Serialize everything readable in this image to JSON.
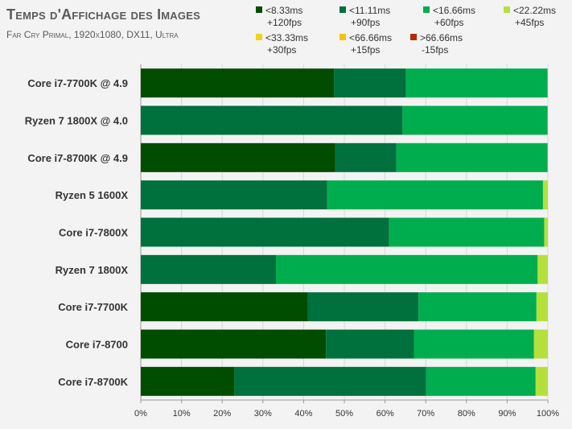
{
  "title": "Temps d'Affichage des Images",
  "subtitle": "Far Cry Primal, 1920x1080, DX11, Ultra",
  "chart_data": {
    "type": "bar",
    "orientation": "horizontal",
    "stacked": true,
    "normalized": true,
    "categories": [
      "Core i7-7700K @ 4.9",
      "Ryzen 7 1800X @ 4.0",
      "Core i7-8700K @ 4.9",
      "Ryzen 5 1600X",
      "Core i7-7800X",
      "Ryzen 7 1800X",
      "Core i7-7700K",
      "Core i7-8700",
      "Core i7-8700K"
    ],
    "series": [
      {
        "name": "<8.33ms",
        "name2": "+120fps",
        "color": "#004d00",
        "values": [
          47.5,
          0,
          47.8,
          0,
          0,
          0,
          41,
          45.5,
          23
        ]
      },
      {
        "name": "<11.11ms",
        "name2": "+90fps",
        "color": "#00703c",
        "values": [
          17.6,
          64.3,
          15,
          45.8,
          61,
          33.2,
          27.2,
          21.6,
          47.1
        ]
      },
      {
        "name": "<16.66ms",
        "name2": "+60fps",
        "color": "#00ad4e",
        "values": [
          34.8,
          35.6,
          37.1,
          53,
          38.1,
          64.3,
          29,
          29.5,
          26.9
        ]
      },
      {
        "name": "<22.22ms",
        "name2": "+45fps",
        "color": "#b5e03c",
        "values": [
          0.1,
          0.1,
          0.1,
          1.2,
          0.9,
          2.5,
          2.8,
          3.4,
          3
        ]
      },
      {
        "name": "<33.33ms",
        "name2": "+30fps",
        "color": "#f2d21a",
        "values": [
          0,
          0,
          0,
          0,
          0,
          0,
          0,
          0,
          0
        ]
      },
      {
        "name": "<66.66ms",
        "name2": "+15fps",
        "color": "#f5c400",
        "values": [
          0,
          0,
          0,
          0,
          0,
          0,
          0,
          0,
          0
        ]
      },
      {
        "name": ">66.66ms",
        "name2": "-15fps",
        "color": "#b52a00",
        "values": [
          0,
          0,
          0,
          0,
          0,
          0,
          0,
          0,
          0
        ]
      }
    ],
    "xlim": [
      0,
      100
    ],
    "xticks": [
      "0%",
      "10%",
      "20%",
      "30%",
      "40%",
      "50%",
      "60%",
      "70%",
      "80%",
      "90%",
      "100%"
    ],
    "grid": true,
    "legend_position": "top-right"
  }
}
